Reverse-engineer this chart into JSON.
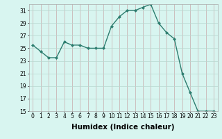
{
  "x": [
    0,
    1,
    2,
    3,
    4,
    5,
    6,
    7,
    8,
    9,
    10,
    11,
    12,
    13,
    14,
    15,
    16,
    17,
    18,
    19,
    20,
    21,
    22,
    23
  ],
  "y": [
    25.5,
    24.5,
    23.5,
    23.5,
    26.0,
    25.5,
    25.5,
    25.0,
    25.0,
    25.0,
    28.5,
    30.0,
    31.0,
    31.0,
    31.5,
    32.0,
    29.0,
    27.5,
    26.5,
    21.0,
    18.0,
    15.0,
    15.0,
    15.0
  ],
  "line_color": "#2d7d6f",
  "marker": "D",
  "marker_size": 2.0,
  "bg_color": "#d8f5f0",
  "grid_color_major": "#c8aaaa",
  "grid_color_minor": "#c8aaaa",
  "xlabel": "Humidex (Indice chaleur)",
  "ylim": [
    15,
    32
  ],
  "xlim": [
    -0.5,
    23.5
  ],
  "yticks": [
    15,
    17,
    19,
    21,
    23,
    25,
    27,
    29,
    31
  ],
  "xticks": [
    0,
    1,
    2,
    3,
    4,
    5,
    6,
    7,
    8,
    9,
    10,
    11,
    12,
    13,
    14,
    15,
    16,
    17,
    18,
    19,
    20,
    21,
    22,
    23
  ],
  "tick_fontsize": 5.5,
  "xlabel_fontsize": 7.5,
  "line_width": 1.0
}
